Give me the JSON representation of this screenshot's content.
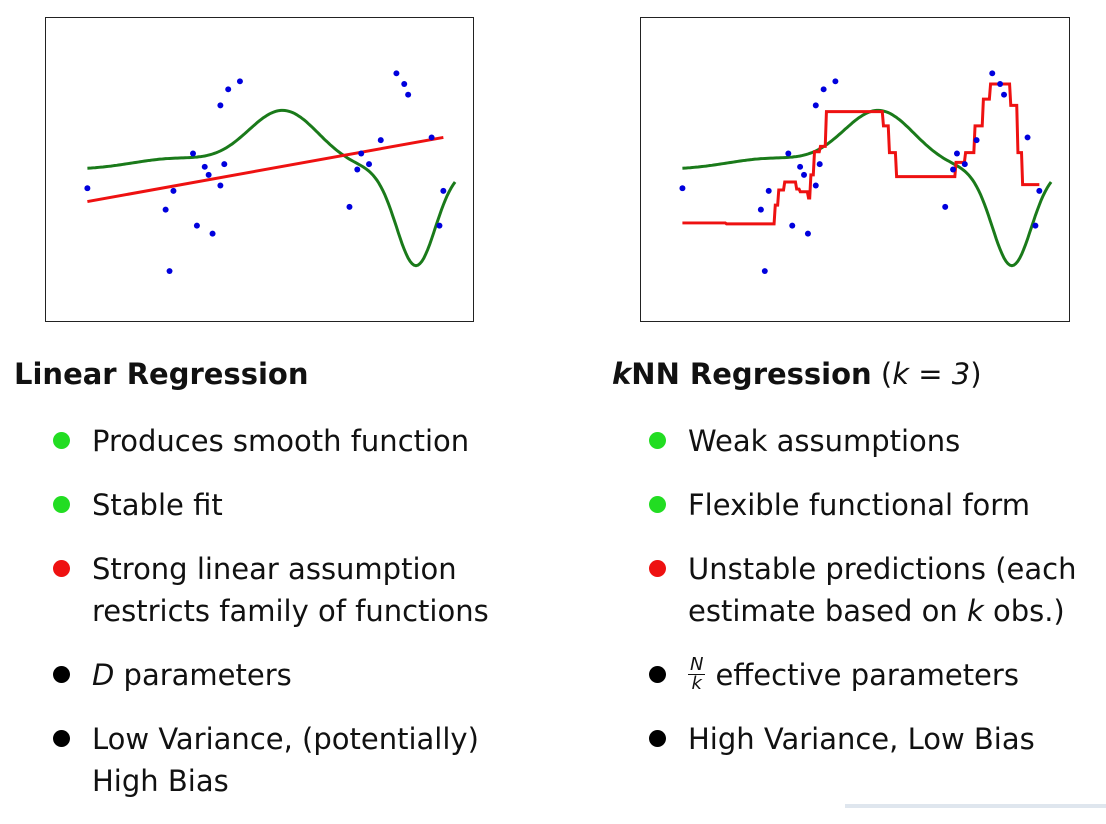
{
  "colors": {
    "green_bullet": "#22dd22",
    "red_bullet": "#ee1111",
    "black_bullet": "#000000",
    "true_function": "#1a7a1a",
    "fit": "#ee1111",
    "points": "#0000dd"
  },
  "left": {
    "heading": "Linear Regression",
    "bullets": [
      {
        "color": "green",
        "line1": "Produces smooth function"
      },
      {
        "color": "green",
        "line1": "Stable fit"
      },
      {
        "color": "red",
        "line1": "Strong linear assumption",
        "line2": "restricts family of functions"
      },
      {
        "color": "black",
        "var": "D",
        "text": " parameters"
      },
      {
        "color": "black",
        "line1": "Low Variance, (potentially)",
        "line2": "High Bias"
      }
    ]
  },
  "right": {
    "heading_k": "k",
    "heading_text": "NN Regression",
    "heading_open": " (",
    "heading_eq": "k = 3",
    "heading_close": ")",
    "bullets": [
      {
        "color": "green",
        "line1": "Weak assumptions"
      },
      {
        "color": "green",
        "line1": "Flexible functional form"
      },
      {
        "color": "red",
        "line1": "Unstable predictions (each",
        "line2_a": "estimate based on ",
        "line2_k": "k",
        "line2_b": " obs.)"
      },
      {
        "color": "black",
        "frac_num": "N",
        "frac_den": "k",
        "text": "effective parameters"
      },
      {
        "color": "black",
        "line1": "High Variance, Low Bias"
      }
    ]
  },
  "chart_data": [
    {
      "type": "scatter",
      "fit": "linear",
      "xlim": [
        0,
        1
      ],
      "ylim": [
        0,
        1
      ],
      "points": [
        [
          0.06,
          0.43
        ],
        [
          0.27,
          0.12
        ],
        [
          0.26,
          0.35
        ],
        [
          0.28,
          0.42
        ],
        [
          0.33,
          0.56
        ],
        [
          0.34,
          0.29
        ],
        [
          0.36,
          0.51
        ],
        [
          0.37,
          0.48
        ],
        [
          0.38,
          0.26
        ],
        [
          0.4,
          0.44
        ],
        [
          0.41,
          0.52
        ],
        [
          0.4,
          0.74
        ],
        [
          0.42,
          0.8
        ],
        [
          0.45,
          0.83
        ],
        [
          0.73,
          0.36
        ],
        [
          0.75,
          0.5
        ],
        [
          0.76,
          0.56
        ],
        [
          0.78,
          0.52
        ],
        [
          0.81,
          0.61
        ],
        [
          0.85,
          0.86
        ],
        [
          0.87,
          0.82
        ],
        [
          0.88,
          0.78
        ],
        [
          0.94,
          0.62
        ],
        [
          0.96,
          0.29
        ],
        [
          0.97,
          0.42
        ]
      ],
      "linear_fit": [
        [
          0.06,
          0.38
        ],
        [
          0.97,
          0.62
        ]
      ]
    },
    {
      "type": "scatter",
      "fit": "knn",
      "k": 3,
      "xlim": [
        0,
        1
      ],
      "ylim": [
        0,
        1
      ],
      "points": [
        [
          0.06,
          0.43
        ],
        [
          0.27,
          0.12
        ],
        [
          0.26,
          0.35
        ],
        [
          0.28,
          0.42
        ],
        [
          0.33,
          0.56
        ],
        [
          0.34,
          0.29
        ],
        [
          0.36,
          0.51
        ],
        [
          0.37,
          0.48
        ],
        [
          0.38,
          0.26
        ],
        [
          0.4,
          0.44
        ],
        [
          0.41,
          0.52
        ],
        [
          0.4,
          0.74
        ],
        [
          0.42,
          0.8
        ],
        [
          0.45,
          0.83
        ],
        [
          0.73,
          0.36
        ],
        [
          0.75,
          0.5
        ],
        [
          0.76,
          0.56
        ],
        [
          0.78,
          0.52
        ],
        [
          0.81,
          0.61
        ],
        [
          0.85,
          0.86
        ],
        [
          0.87,
          0.82
        ],
        [
          0.88,
          0.78
        ],
        [
          0.94,
          0.62
        ],
        [
          0.96,
          0.29
        ],
        [
          0.97,
          0.42
        ]
      ]
    }
  ]
}
